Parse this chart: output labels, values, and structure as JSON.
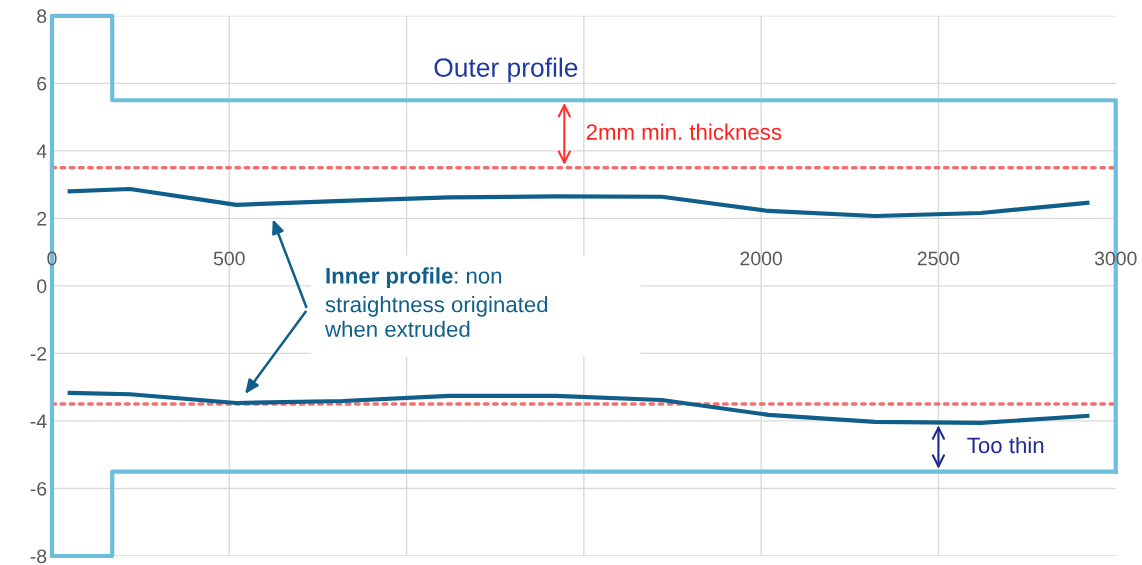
{
  "chart_data": {
    "type": "line",
    "xlim": [
      0,
      3000
    ],
    "xticks": [
      0,
      500,
      {
        "value": 1000,
        "label": null
      },
      {
        "value": 1500,
        "label": null
      },
      2000,
      2500,
      3000
    ],
    "ylim": [
      -8,
      8
    ],
    "yticks": [
      -8,
      -6,
      -4,
      -2,
      0,
      2,
      4,
      6,
      8
    ],
    "grid": true,
    "series": [
      {
        "color": "#6bbfdc",
        "x": [
          0,
          0,
          170,
          170,
          3000,
          3000
        ],
        "values": [
          -8,
          8,
          8,
          5.5,
          5.5,
          -5.5
        ]
      },
      {
        "color": "#6bbfdc",
        "x": [
          0,
          170,
          170,
          3000
        ],
        "values": [
          -8,
          -8,
          -5.5,
          -5.5
        ]
      },
      {
        "color": "#0f5f8a",
        "x": [
          50,
          220,
          520,
          820,
          1120,
          1420,
          1720,
          2020,
          2320,
          2620,
          2920
        ],
        "values": [
          2.8,
          2.87,
          2.4,
          2.52,
          2.62,
          2.65,
          2.64,
          2.22,
          2.07,
          2.16,
          2.46
        ]
      },
      {
        "color": "#0f5f8a",
        "x": [
          50,
          220,
          520,
          820,
          1120,
          1420,
          1720,
          2020,
          2320,
          2620,
          2920
        ],
        "values": [
          -3.17,
          -3.21,
          -3.47,
          -3.41,
          -3.26,
          -3.26,
          -3.38,
          -3.82,
          -4.03,
          -4.06,
          -3.85
        ]
      }
    ],
    "ref_lines": [
      {
        "axis": "y",
        "value": 3.5,
        "color": "#f07070",
        "line_style": "dotted"
      },
      {
        "axis": "y",
        "value": -3.5,
        "color": "#f07070",
        "line_style": "dotted"
      }
    ],
    "annotations": [
      "Outer profile",
      "2mm min. thickness",
      "Too thin",
      "Inner profile",
      ": non\nstraightness originated\nwhen extruded"
    ]
  }
}
